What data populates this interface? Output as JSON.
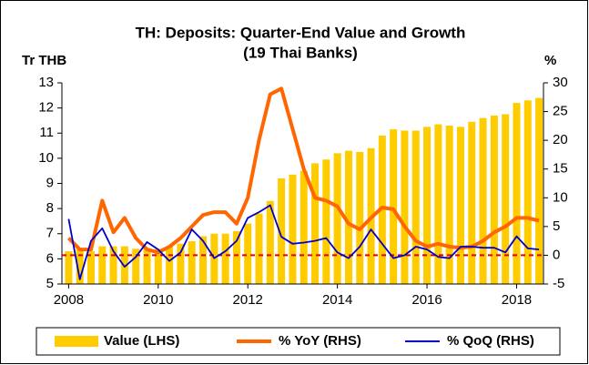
{
  "chart_data": {
    "type": "bar-line",
    "title": "TH: Deposits: Quarter-End Value and Growth",
    "subtitle": "(19 Thai Banks)",
    "ylabel": "Tr THB",
    "y2label": "%",
    "x": [
      2008,
      2008.25,
      2008.5,
      2008.75,
      2009,
      2009.25,
      2009.5,
      2009.75,
      2010,
      2010.25,
      2010.5,
      2010.75,
      2011,
      2011.25,
      2011.5,
      2011.75,
      2012,
      2012.25,
      2012.5,
      2012.75,
      2013,
      2013.25,
      2013.5,
      2013.75,
      2014,
      2014.25,
      2014.5,
      2014.75,
      2015,
      2015.25,
      2015.5,
      2015.75,
      2016,
      2016.25,
      2016.5,
      2016.75,
      2017,
      2017.25,
      2017.5,
      2017.75,
      2018,
      2018.25,
      2018.5
    ],
    "series": [
      {
        "name": "Value (LHS)",
        "kind": "bar",
        "color": "#ffcc00",
        "axis": "y",
        "values": [
          6.3,
          6.4,
          6.3,
          6.5,
          6.5,
          6.5,
          6.4,
          6.4,
          6.4,
          6.5,
          6.6,
          6.7,
          6.9,
          7.0,
          7.0,
          7.1,
          7.4,
          7.8,
          8.3,
          9.2,
          9.35,
          9.5,
          9.8,
          9.95,
          10.2,
          10.3,
          10.25,
          10.4,
          10.9,
          11.15,
          11.1,
          11.1,
          11.25,
          11.35,
          11.3,
          11.25,
          11.45,
          11.6,
          11.7,
          11.75,
          12.2,
          12.3,
          12.4
        ]
      },
      {
        "name": "% YoY (RHS)",
        "kind": "line",
        "color": "#ff6600",
        "axis": "y2",
        "values": [
          3,
          1,
          1,
          9.5,
          4,
          6.5,
          3,
          1,
          0.5,
          1.5,
          3,
          5,
          7,
          7.5,
          7.5,
          5.5,
          10,
          20,
          28,
          29,
          22,
          15,
          10,
          9.5,
          8.5,
          5.5,
          4.5,
          6.5,
          8.3,
          8,
          5,
          2.5,
          1.5,
          2,
          1.5,
          1.3,
          1.5,
          2.5,
          4,
          5,
          6.5,
          6.5,
          6
        ]
      },
      {
        "name": "% QoQ (RHS)",
        "kind": "line",
        "color": "#0000cc",
        "axis": "y2",
        "values": [
          6.3,
          -4.2,
          2.5,
          4.7,
          0.7,
          -2,
          -0.3,
          2.3,
          1,
          -1,
          0.5,
          4.5,
          2.5,
          -0.5,
          0.7,
          2.5,
          6.5,
          7.5,
          8.7,
          3.2,
          2,
          2.2,
          2.5,
          3,
          0.5,
          -0.5,
          1.5,
          4.5,
          2,
          -0.5,
          0,
          1.5,
          1,
          -0.3,
          -0.5,
          1.5,
          1.5,
          1.3,
          1.3,
          0.5,
          3.3,
          1.2,
          1.0
        ]
      }
    ],
    "xlim": [
      2007.85,
      2018.6
    ],
    "xticks": [
      2008,
      2010,
      2012,
      2014,
      2016,
      2018
    ],
    "ylim": [
      5,
      13
    ],
    "yticks": [
      5,
      6,
      7,
      8,
      9,
      10,
      11,
      12,
      13
    ],
    "y2lim": [
      -5,
      30
    ],
    "y2ticks": [
      -5,
      0,
      5,
      10,
      15,
      20,
      25,
      30
    ],
    "reference_line": {
      "axis": "y2",
      "value": 0,
      "color": "#e00000"
    },
    "legend": "bottom"
  }
}
